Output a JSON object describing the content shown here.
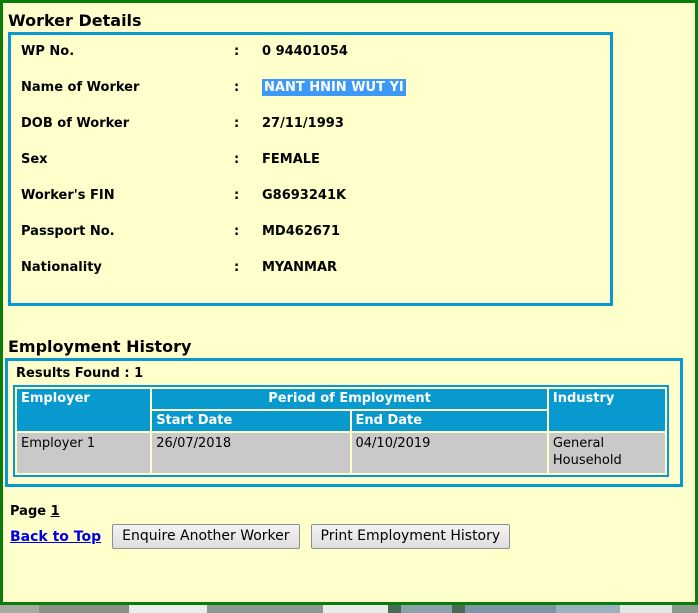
{
  "worker_details": {
    "title": "Worker Details",
    "separator": ":",
    "fields": [
      {
        "label": "WP No.",
        "value": "0 94401054"
      },
      {
        "label": "Name of Worker",
        "value": "NANT HNIN WUT YI"
      },
      {
        "label": "DOB of Worker",
        "value": "27/11/1993"
      },
      {
        "label": "Sex",
        "value": "FEMALE"
      },
      {
        "label": "Worker's FIN",
        "value": "G8693241K"
      },
      {
        "label": "Passport No.",
        "value": "MD462671"
      },
      {
        "label": "Nationality",
        "value": "MYANMAR"
      }
    ]
  },
  "employment_history": {
    "title": "Employment History",
    "results_found": "Results Found : 1",
    "table": {
      "headers": {
        "employer": "Employer",
        "period": "Period of Employment",
        "start_date": "Start Date",
        "end_date": "End Date",
        "industry": "Industry"
      },
      "rows": [
        {
          "employer": "Employer 1",
          "start_date": "26/07/2018",
          "end_date": "04/10/2019",
          "industry": "General Household"
        }
      ]
    }
  },
  "pagination": {
    "label": "Page",
    "page_number": "1"
  },
  "actions": {
    "back_to_top": "Back to Top",
    "enquire_button": "Enquire Another Worker",
    "print_button": "Print Employment History"
  },
  "colors": {
    "page_background": "#FFFFCC",
    "page_border_green": "#087E08",
    "panel_border_cyan": "#0899CE",
    "table_header_blue": "#0899CE",
    "table_row_gray": "#C9C9C9",
    "selection_blue": "#3D99F7",
    "link_blue": "#0000E6"
  }
}
